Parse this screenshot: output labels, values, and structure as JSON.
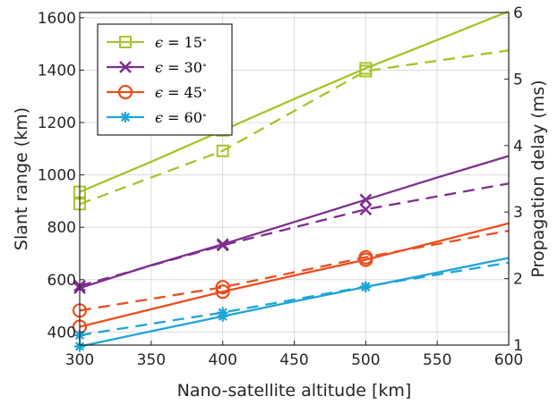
{
  "chart_data": {
    "type": "line",
    "xlabel": "Nano-satellite altitude [km]",
    "ylabel_left": "Slant range (km)",
    "ylabel_right": "Propagation delay (ms)",
    "xlim": [
      300,
      600
    ],
    "ylim_left": [
      350,
      1620
    ],
    "ylim_right": [
      1,
      6
    ],
    "x_ticks": [
      300,
      350,
      400,
      450,
      500,
      550,
      600
    ],
    "y_left_ticks": [
      400,
      600,
      800,
      1000,
      1200,
      1400,
      1600
    ],
    "y_right_ticks": [
      1,
      2,
      3,
      4,
      5,
      6
    ],
    "grid": true,
    "legend_position": "top-left",
    "legend_symbol": "ϵ",
    "legend_degree": "∘",
    "series": [
      {
        "name": "= 15",
        "color": "#A5C52A",
        "marker": "square",
        "slant_range_x": [
          300,
          350,
          400,
          450,
          500,
          550,
          600
        ],
        "slant_range_y": [
          935,
          1050,
          1170,
          1290,
          1407,
          1515,
          1625
        ],
        "delay_x": [
          300,
          400,
          500,
          600
        ],
        "delay_ms": [
          3.12,
          3.92,
          5.12,
          5.43
        ],
        "marker_x": [
          300,
          400,
          500
        ]
      },
      {
        "name": "= 30",
        "color": "#7E2F8E",
        "marker": "x",
        "slant_range_x": [
          300,
          350,
          400,
          450,
          500,
          550,
          600
        ],
        "slant_range_y": [
          568,
          655,
          735,
          820,
          905,
          990,
          1072
        ],
        "delay_x": [
          300,
          400,
          500,
          600
        ],
        "delay_ms": [
          1.89,
          2.5,
          3.04,
          3.43
        ],
        "marker_x": [
          300,
          400,
          500
        ]
      },
      {
        "name": "= 45",
        "color": "#EA4F1E",
        "marker": "circle",
        "slant_range_x": [
          300,
          350,
          400,
          450,
          500,
          550,
          600
        ],
        "slant_range_y": [
          420,
          487,
          554,
          616,
          676,
          745,
          815
        ],
        "delay_x": [
          300,
          400,
          500,
          600
        ],
        "delay_ms": [
          1.52,
          1.87,
          2.32,
          2.72
        ],
        "marker_x": [
          300,
          400,
          500
        ]
      },
      {
        "name": "= 60",
        "color": "#1EA5D7",
        "marker": "asterisk",
        "slant_range_x": [
          300,
          350,
          400,
          450,
          500,
          550,
          600
        ],
        "slant_range_y": [
          345,
          403,
          460,
          517,
          572,
          627,
          683
        ],
        "delay_x": [
          300,
          400,
          500,
          600
        ],
        "delay_ms": [
          1.15,
          1.49,
          1.88,
          2.24
        ],
        "marker_x": [
          300,
          400,
          500
        ]
      }
    ]
  }
}
